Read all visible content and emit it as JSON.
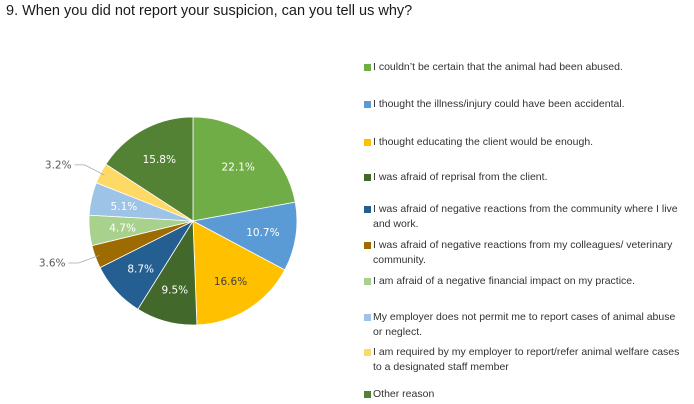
{
  "question": "9.  When you did not report your suspicion, can you tell us why?",
  "chart_data": {
    "type": "pie",
    "title": "",
    "start_angle_deg": 0,
    "direction": "clockwise",
    "slices": [
      {
        "label": "I couldn’t be certain that the animal had been abused.",
        "value": 22.1,
        "display": "22.1%",
        "color": "#70ad47",
        "label_color": "#ffffff",
        "label_pos": "inside"
      },
      {
        "label": "I thought the illness/injury could have been accidental.",
        "value": 10.7,
        "display": "10.7%",
        "color": "#5b9bd5",
        "label_color": "#ffffff",
        "label_pos": "inside"
      },
      {
        "label": "I thought educating the client would be enough.",
        "value": 16.6,
        "display": "16.6%",
        "color": "#ffc000",
        "label_color": "#404040",
        "label_pos": "inside"
      },
      {
        "label": "I was afraid of reprisal from the client.",
        "value": 9.5,
        "display": "9.5%",
        "color": "#43682b",
        "label_color": "#ffffff",
        "label_pos": "inside"
      },
      {
        "label": "I was afraid of negative reactions from the community where I live and work.",
        "value": 8.7,
        "display": "8.7%",
        "color": "#255e91",
        "label_color": "#ffffff",
        "label_pos": "inside"
      },
      {
        "label": "I was afraid of negative reactions from my colleagues/ veterinary community.",
        "value": 3.6,
        "display": "3.6%",
        "color": "#9e6b00",
        "label_color": "#595959",
        "label_pos": "outside"
      },
      {
        "label": "I am afraid of a negative financial impact on my practice.",
        "value": 4.7,
        "display": "4.7%",
        "color": "#a9d18e",
        "label_color": "#ffffff",
        "label_pos": "inside"
      },
      {
        "label": "My employer does not permit me to report cases of animal abuse or neglect.",
        "value": 5.1,
        "display": "5.1%",
        "color": "#9dc3e6",
        "label_color": "#ffffff",
        "label_pos": "inside"
      },
      {
        "label": "I am required by my employer to report/refer animal welfare cases to a designated staff member",
        "value": 3.2,
        "display": "3.2%",
        "color": "#ffd966",
        "label_color": "#595959",
        "label_pos": "outside"
      },
      {
        "label": "Other reason",
        "value": 15.8,
        "display": "15.8%",
        "color": "#548235",
        "label_color": "#ffffff",
        "label_pos": "inside"
      }
    ],
    "legend": {
      "placement": "right",
      "items": [
        {
          "text": "I couldn’t be certain that the animal had been abused.",
          "color": "#70ad47"
        },
        {
          "text": "I thought the illness/injury could have been accidental.",
          "color": "#5b9bd5"
        },
        {
          "text": "I thought educating the client would be enough.",
          "color": "#ffc000"
        },
        {
          "text": "I was afraid of reprisal from the client.",
          "color": "#43682b"
        },
        {
          "text": "I was afraid of negative reactions from the community where I live and work.",
          "color": "#255e91"
        },
        {
          "text": "I was afraid of negative reactions from my colleagues/ veterinary community.",
          "color": "#9e6b00"
        },
        {
          "text": "I am afraid of a negative financial impact on my practice.",
          "color": "#a9d18e"
        },
        {
          "text": "My employer does not permit me to report cases of animal abuse or neglect.",
          "color": "#9dc3e6"
        },
        {
          "text": "I am required by my employer to report/refer animal welfare cases to a designated staff member",
          "color": "#ffd966"
        },
        {
          "text": "Other reason",
          "color": "#548235"
        }
      ]
    }
  }
}
